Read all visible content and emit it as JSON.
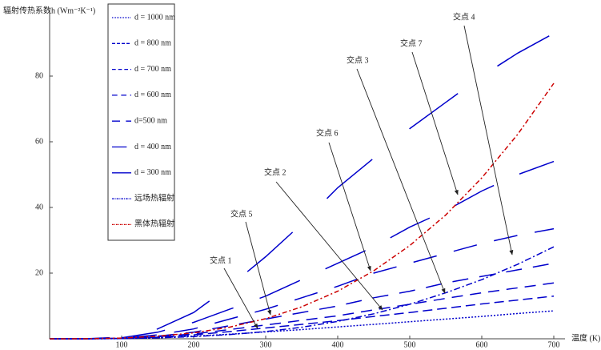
{
  "chart_data": {
    "type": "line",
    "y_label": "辐射传热系数h (Wm⁻²K⁻¹)",
    "x_label": "温度 (K)",
    "x": [
      0,
      50,
      100,
      150,
      200,
      250,
      300,
      350,
      400,
      450,
      500,
      550,
      600,
      650,
      700
    ],
    "xlim": [
      0,
      710
    ],
    "ylim": [
      0,
      100
    ],
    "xticks": [
      100,
      200,
      300,
      400,
      500,
      600,
      700
    ],
    "yticks": [
      20,
      40,
      60,
      80
    ],
    "series": [
      {
        "name": "d = 1000 nm",
        "color": "#0000cc",
        "dash": "2,2",
        "values": [
          0,
          0,
          0.05,
          0.3,
          0.8,
          1.4,
          2.1,
          2.8,
          3.6,
          4.4,
          5.2,
          6,
          6.8,
          7.7,
          8.5
        ]
      },
      {
        "name": "d = 800 nm",
        "color": "#0000cc",
        "dash": "12,6",
        "values": [
          0,
          0,
          0.1,
          0.5,
          1.2,
          2.2,
          3.3,
          4.4,
          5.5,
          6.8,
          8,
          9.3,
          10.6,
          11.8,
          13
        ]
      },
      {
        "name": "d = 700 nm",
        "color": "#0000cc",
        "dash": "14,9",
        "values": [
          0,
          0,
          0.1,
          0.6,
          1.5,
          2.8,
          4.2,
          5.6,
          7,
          8.8,
          10.5,
          12.3,
          14,
          15.5,
          17
        ]
      },
      {
        "name": "d = 600 nm",
        "color": "#0000cc",
        "dash": "20,14",
        "values": [
          0,
          0,
          0.1,
          0.8,
          2,
          4,
          6,
          8,
          10,
          12.5,
          14.5,
          17,
          19,
          21,
          23
        ]
      },
      {
        "name": "d=500 nm",
        "color": "#0000cc",
        "dash": "30,22",
        "values": [
          0,
          0,
          0.2,
          1.2,
          3,
          6,
          9,
          12.5,
          16,
          20,
          23,
          26,
          29,
          31.5,
          33.5
        ]
      },
      {
        "name": "d = 400 nm",
        "color": "#0000cc",
        "dash": "55,35",
        "values": [
          0,
          0,
          0.3,
          2,
          5,
          9,
          13,
          18,
          23,
          28,
          34,
          39,
          45,
          50,
          54
        ]
      },
      {
        "name": "d = 300 nm",
        "color": "#0000cc",
        "dash": "75,60",
        "values": [
          0,
          0,
          0.5,
          3,
          8,
          16,
          25,
          35,
          46,
          55,
          64,
          72,
          80,
          87,
          93
        ]
      },
      {
        "name": "远场热辐射",
        "color": "#0000cc",
        "dash": "8,3,2,3",
        "values": [
          0,
          0,
          0.08,
          0.3,
          0.65,
          1.3,
          2.2,
          3.5,
          5.3,
          7.6,
          10.5,
          14,
          18,
          22.7,
          28
        ]
      },
      {
        "name": "黑体热辐射",
        "color": "#cc0000",
        "dash": "6,3,2,3",
        "values": [
          0,
          0.03,
          0.23,
          0.77,
          1.81,
          3.54,
          6.12,
          9.72,
          14.5,
          20.7,
          28.4,
          37.7,
          49.0,
          62.3,
          77.8
        ]
      }
    ],
    "annotations": [
      "交点 1",
      "交点 5",
      "交点 2",
      "交点 6",
      "交点 3",
      "交点 7",
      "交点 4"
    ]
  }
}
